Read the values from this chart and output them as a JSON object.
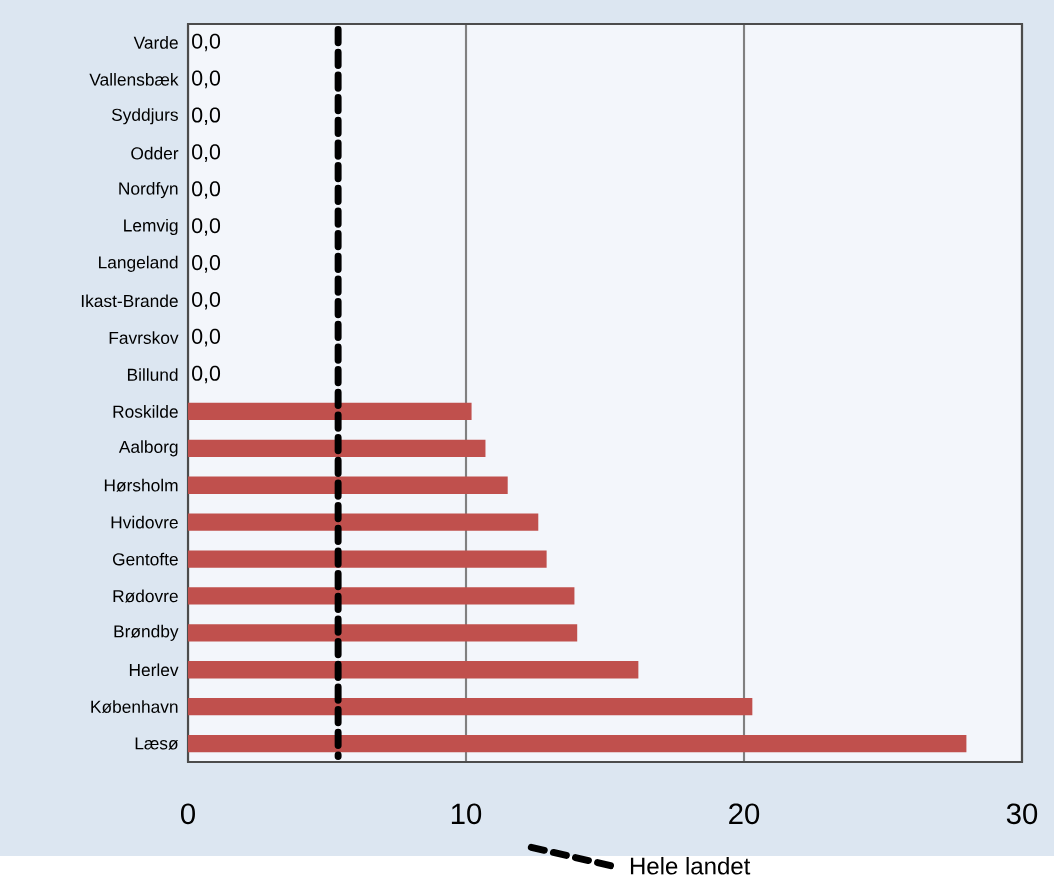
{
  "chart_data": {
    "type": "bar",
    "orientation": "horizontal",
    "categories": [
      "Varde",
      "Vallensbæk",
      "Syddjurs",
      "Odder",
      "Nordfyn",
      "Lemvig",
      "Langeland",
      "Ikast-Brande",
      "Favrskov",
      "Billund",
      "Roskilde",
      "Aalborg",
      "Hørsholm",
      "Hvidovre",
      "Gentofte",
      "Rødovre",
      "Brøndby",
      "Herlev",
      "København",
      "Læsø"
    ],
    "values": [
      0,
      0,
      0,
      0,
      0,
      0,
      0,
      0,
      0,
      0,
      10.2,
      10.7,
      11.5,
      12.6,
      12.9,
      13.9,
      14.0,
      16.2,
      20.3,
      28.0
    ],
    "value_labels": [
      "0,0",
      "0,0",
      "0,0",
      "0,0",
      "0,0",
      "0,0",
      "0,0",
      "0,0",
      "0,0",
      "0,0",
      null,
      null,
      null,
      null,
      null,
      null,
      null,
      null,
      null,
      null
    ],
    "color": "#c0504d",
    "xlim": [
      0,
      30
    ],
    "xticks": [
      0,
      10,
      20,
      30
    ],
    "grid": "x",
    "ref_lines": [
      {
        "axis": "x",
        "value": 5.4,
        "label": "Hele landet",
        "line_style": "dashed",
        "color": "#000000"
      }
    ]
  }
}
